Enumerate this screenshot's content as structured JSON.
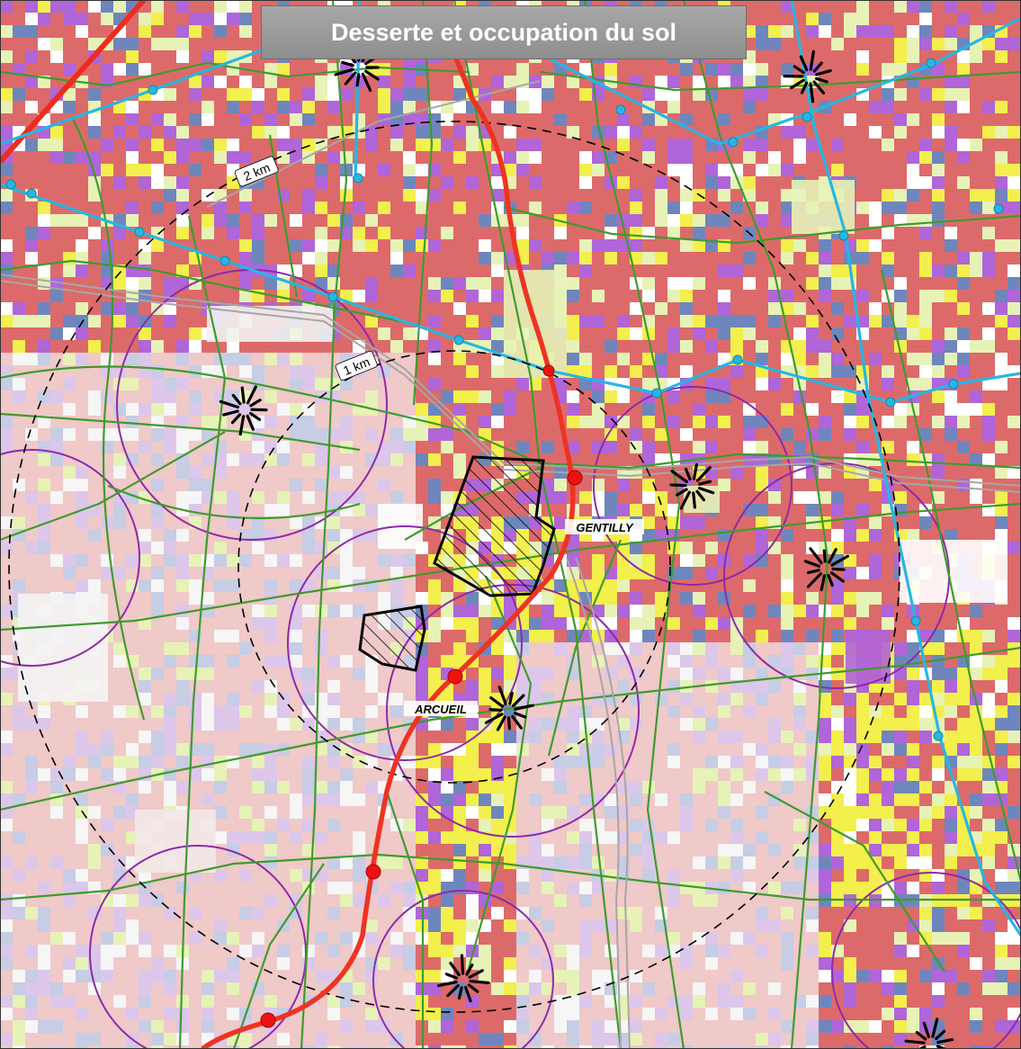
{
  "title": "Desserte et occupation du sol",
  "labels": {
    "ring_2km": "2 km",
    "ring_1km": "1 km",
    "gentilly": "GENTILLY",
    "arcueil": "ARCUEIL"
  },
  "colors": {
    "residential": "#dd6a6a",
    "activity": "#b065d8",
    "equipment": "#6f86bd",
    "green": "#e7f2b6",
    "yellow_zone": "#f3ef4c",
    "light_residential": "#f0c9c9",
    "light_activity": "#dcc7ea",
    "light_equipment": "#c6cde4",
    "road_network": "#3f9b2e",
    "rer_line": "#ee3322",
    "metro_line": "#27b6e2",
    "catchment": "#8e2aa8",
    "hatched_zone": "#000000"
  },
  "icons": [
    "rer-station-icon",
    "metro-station-icon",
    "bus-hub-icon"
  ]
}
